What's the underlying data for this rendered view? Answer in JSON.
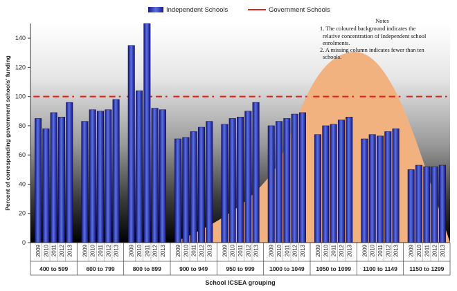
{
  "chart_data": {
    "type": "bar",
    "title": "",
    "xlabel": "School ICSEA grouping",
    "ylabel": "Percent of corresponding government schools' funding",
    "ylim": [
      0,
      150
    ],
    "yticks": [
      0,
      20,
      40,
      60,
      80,
      100,
      120,
      140
    ],
    "years": [
      "2009",
      "2010",
      "2011",
      "2012",
      "2013"
    ],
    "groups": [
      {
        "label": "400 to 599",
        "values": [
          85,
          78,
          89,
          86,
          96
        ]
      },
      {
        "label": "600 to 799",
        "values": [
          83,
          91,
          90,
          91,
          98
        ]
      },
      {
        "label": "800 to 899",
        "values": [
          135,
          104,
          150,
          92,
          91
        ]
      },
      {
        "label": "900 to 949",
        "values": [
          71,
          72,
          76,
          79,
          83
        ]
      },
      {
        "label": "950 to 999",
        "values": [
          81,
          85,
          86,
          90,
          96
        ]
      },
      {
        "label": "1000 to 1049",
        "values": [
          80,
          83,
          85,
          88,
          89
        ]
      },
      {
        "label": "1050 to 1099",
        "values": [
          74,
          80,
          81,
          84,
          86
        ]
      },
      {
        "label": "1100 to 1149",
        "values": [
          71,
          74,
          73,
          76,
          78
        ]
      },
      {
        "label": "1150 to 1299",
        "values": [
          50,
          53,
          52,
          52,
          53
        ]
      }
    ],
    "series": [
      {
        "name": "Independent Schools",
        "type": "bar"
      },
      {
        "name": "Government Schools",
        "type": "line",
        "value": 100
      }
    ],
    "legend_position": "top-center",
    "grid": false
  },
  "colors": {
    "bar_dark": "#14147a",
    "bar_light": "#5a72e6",
    "government_line": "#e2231a",
    "background_top": "#ffffff",
    "background_bottom": "#000000",
    "concentration_fill": "#f2b27f"
  },
  "notes": {
    "title": "Notes",
    "lines": [
      "1.  The coloured background indicates the",
      "relative concentration of Independent school",
      "enrolments.",
      "2.  A missing column indicates fewer than ten",
      "schools."
    ]
  }
}
